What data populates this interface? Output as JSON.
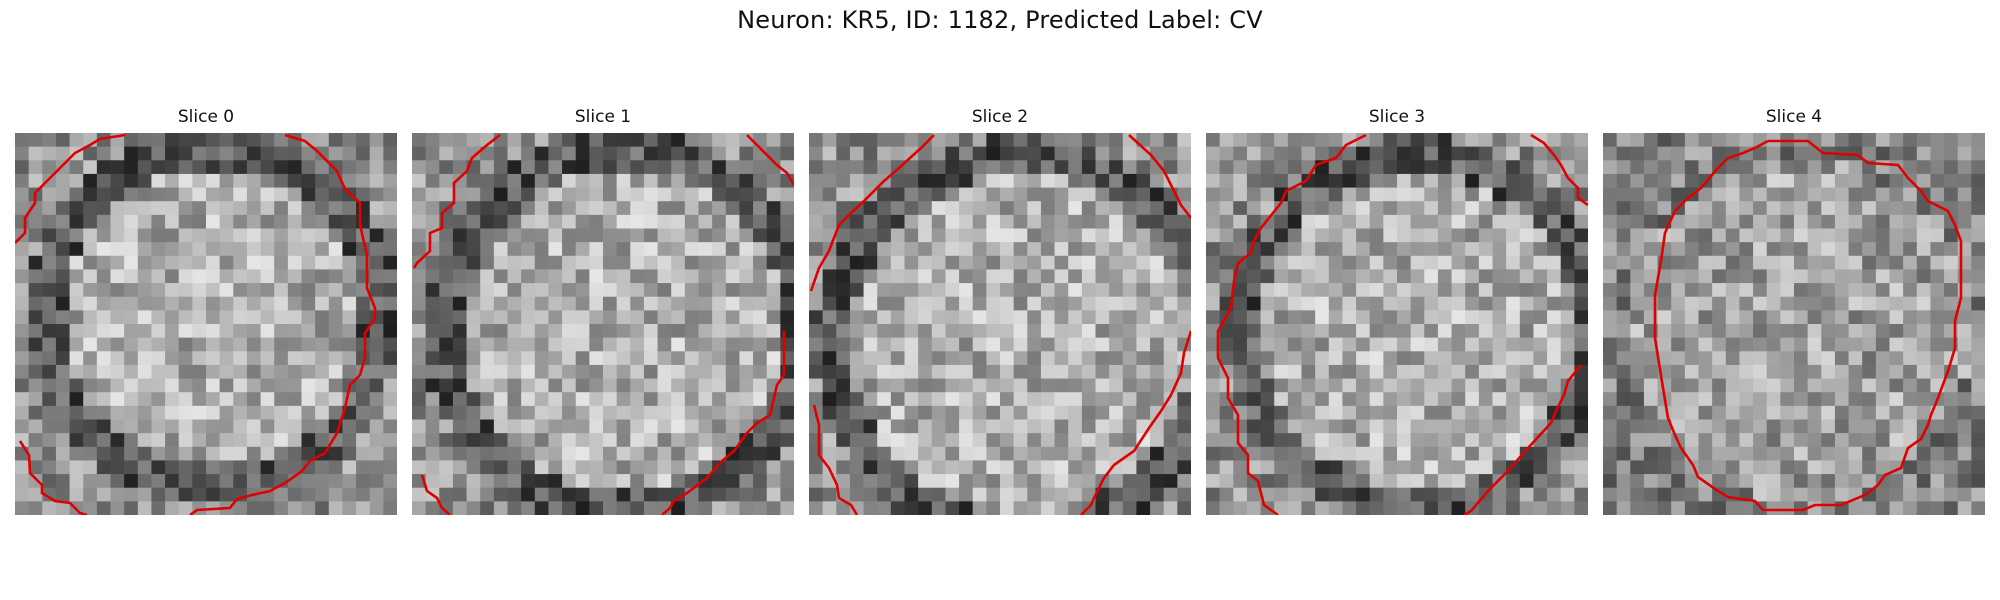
{
  "figure": {
    "title": "Neuron: KR5, ID: 1182, Predicted Label: CV",
    "contour_color": "#e00000"
  },
  "panels": [
    {
      "title": "Slice 0"
    },
    {
      "title": "Slice 1"
    },
    {
      "title": "Slice 2"
    },
    {
      "title": "Slice 3"
    },
    {
      "title": "Slice 4"
    }
  ]
}
